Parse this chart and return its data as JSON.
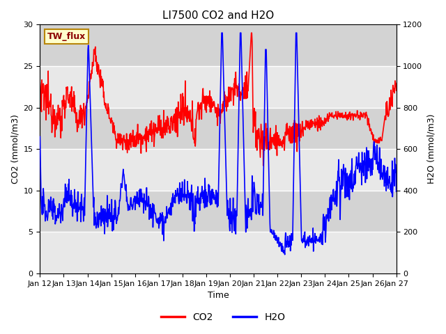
{
  "title": "LI7500 CO2 and H2O",
  "xlabel": "Time",
  "ylabel_left": "CO2 (mmol/m3)",
  "ylabel_right": "H2O (mmol/m3)",
  "ylim_left": [
    0,
    30
  ],
  "ylim_right": [
    0,
    1200
  ],
  "yticks_left": [
    0,
    5,
    10,
    15,
    20,
    25,
    30
  ],
  "yticks_right": [
    0,
    200,
    400,
    600,
    800,
    1000,
    1200
  ],
  "xtick_labels": [
    "Jan 12",
    "Jan 13",
    "Jan 14",
    "Jan 15",
    "Jan 16",
    "Jan 17",
    "Jan 18",
    "Jan 19",
    "Jan 20",
    "Jan 21",
    "Jan 22",
    "Jan 23",
    "Jan 24",
    "Jan 25",
    "Jan 26",
    "Jan 27"
  ],
  "label_box_text": "TW_flux",
  "bg_color_light": "#e8e8e8",
  "bg_color_dark": "#d0d0d0",
  "plot_bg": "#f0f0f0",
  "co2_color": "#ff0000",
  "h2o_color": "#0000ff",
  "co2_label": "CO2",
  "h2o_label": "H2O",
  "title_fontsize": 11,
  "axis_label_fontsize": 9,
  "tick_fontsize": 8,
  "legend_fontsize": 10,
  "line_width": 1.2,
  "band_colors": [
    "#e8e8e8",
    "#d3d3d3"
  ]
}
